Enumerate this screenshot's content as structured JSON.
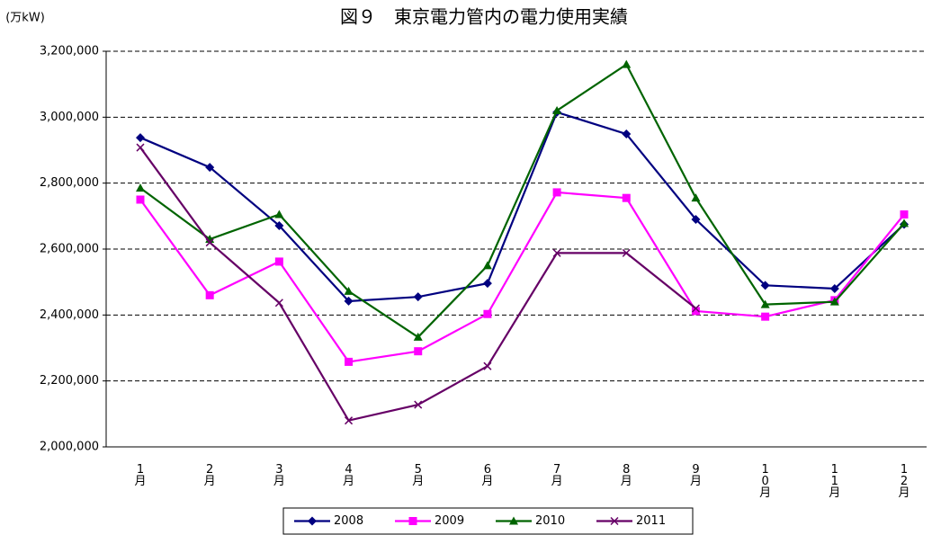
{
  "chart_data": {
    "type": "line",
    "title": "図９　東京電力管内の電力使用実績",
    "y_label": "(万kW)",
    "categories": [
      "1月",
      "2月",
      "3月",
      "4月",
      "5月",
      "6月",
      "7月",
      "8月",
      "9月",
      "10月",
      "11月",
      "12月"
    ],
    "series": [
      {
        "name": "2008",
        "color": "#000080",
        "marker": "diamond",
        "values": [
          2938000,
          2848000,
          2671000,
          2442000,
          2455000,
          2496000,
          3015000,
          2949000,
          2690000,
          2490000,
          2480000,
          2675000
        ]
      },
      {
        "name": "2009",
        "color": "#ff00ff",
        "marker": "square",
        "values": [
          2750000,
          2460000,
          2562000,
          2258000,
          2290000,
          2403000,
          2772000,
          2755000,
          2412000,
          2395000,
          2445000,
          2705000
        ]
      },
      {
        "name": "2010",
        "color": "#006400",
        "marker": "triangle",
        "values": [
          2785000,
          2630000,
          2705000,
          2472000,
          2333000,
          2550000,
          3020000,
          3160000,
          2755000,
          2432000,
          2440000,
          2678000
        ]
      },
      {
        "name": "2011",
        "color": "#660066",
        "marker": "x",
        "values": [
          2908000,
          2620000,
          2437000,
          2080000,
          2128000,
          2245000,
          2588000,
          2588000,
          2420000,
          null,
          null,
          null
        ]
      }
    ],
    "ylim": [
      2000000,
      3200000
    ],
    "yticks": [
      {
        "value": 2000000,
        "label": "2,000,000"
      },
      {
        "value": 2200000,
        "label": "2,200,000"
      },
      {
        "value": 2400000,
        "label": "2,400,000"
      },
      {
        "value": 2600000,
        "label": "2,600,000"
      },
      {
        "value": 2800000,
        "label": "2,800,000"
      },
      {
        "value": 3000000,
        "label": "3,000,000"
      },
      {
        "value": 3200000,
        "label": "3,200,000"
      }
    ],
    "grid": true,
    "legend": "bottom"
  }
}
